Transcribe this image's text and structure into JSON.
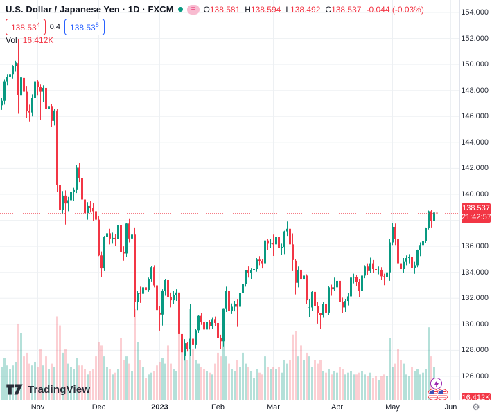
{
  "header": {
    "symbol": "U.S. Dollar / Japanese Yen · 1D · FXCM",
    "market_status_dot": "green",
    "eq_badge": "=",
    "ohlc": {
      "o_label": "O",
      "o": "138.581",
      "h_label": "H",
      "h": "138.594",
      "l_label": "L",
      "l": "138.492",
      "c_label": "C",
      "c": "138.537",
      "change": "-0.044 (-0.03%)"
    }
  },
  "quote": {
    "bid": "138.53",
    "bid_sup": "4",
    "spread": "0.4",
    "ask": "138.53",
    "ask_sup": "8"
  },
  "volume_row": {
    "label": "Vol",
    "value": "16.412K"
  },
  "price_axis": {
    "labels": [
      "154.000",
      "152.000",
      "150.000",
      "148.000",
      "146.000",
      "144.000",
      "142.000",
      "140.000",
      "138.000",
      "136.000",
      "134.000",
      "132.000",
      "130.000",
      "128.000",
      "126.000"
    ],
    "price_badge": {
      "price": "138.537",
      "countdown": "21:42:57"
    },
    "volume_badge": "16.412K"
  },
  "time_axis": {
    "ticks": [
      {
        "label": "Nov",
        "i": 13,
        "year": false
      },
      {
        "label": "Dec",
        "i": 35,
        "year": false
      },
      {
        "label": "2023",
        "i": 57,
        "year": true
      },
      {
        "label": "Feb",
        "i": 78,
        "year": false
      },
      {
        "label": "Mar",
        "i": 98,
        "year": false
      },
      {
        "label": "Apr",
        "i": 121,
        "year": false
      },
      {
        "label": "May",
        "i": 141,
        "year": false
      },
      {
        "label": "Jun",
        "i": 162,
        "year": false
      }
    ],
    "gear_icon": "⚙"
  },
  "logo": {
    "text": "TradingView"
  },
  "colors": {
    "up": "#089981",
    "down": "#F23645",
    "accent_blue": "#2962FF",
    "grid": "#EDF0F3",
    "badge_red": "#F23645",
    "text_dark": "#131722"
  },
  "chart_data": {
    "type": "candlestick-with-volume",
    "title": "USD/JPY 1D FXCM",
    "y_axis": {
      "min": 126.0,
      "max": 154.0,
      "tick_step": 2.0,
      "side": "right"
    },
    "x_axis": {
      "range": "Oct 2022 – Jun 2023",
      "interval": "1 day"
    },
    "last_price": 138.537,
    "current_volume_k": 16.412,
    "grid": true,
    "columns": [
      "open",
      "high",
      "low",
      "close",
      "volume_k"
    ],
    "candles": [
      [
        146.85,
        147.45,
        146.5,
        147.2,
        90
      ],
      [
        147.2,
        148.86,
        146.9,
        148.7,
        115
      ],
      [
        148.7,
        149.25,
        148.4,
        149.05,
        95
      ],
      [
        149.05,
        149.38,
        148.6,
        149.25,
        85
      ],
      [
        149.25,
        149.95,
        148.9,
        149.9,
        95
      ],
      [
        149.9,
        150.29,
        149.45,
        150.15,
        105
      ],
      [
        150.1,
        151.94,
        146.2,
        147.65,
        210
      ],
      [
        147.6,
        149.7,
        145.56,
        148.99,
        185
      ],
      [
        148.95,
        149.5,
        147.5,
        147.9,
        120
      ],
      [
        147.9,
        148.3,
        145.9,
        146.4,
        130
      ],
      [
        146.4,
        146.9,
        145.6,
        146.3,
        100
      ],
      [
        146.3,
        147.7,
        146.0,
        147.45,
        95
      ],
      [
        147.45,
        148.85,
        146.9,
        148.7,
        105
      ],
      [
        148.7,
        148.8,
        147.6,
        148.25,
        90
      ],
      [
        148.25,
        148.45,
        145.7,
        147.9,
        140
      ],
      [
        147.9,
        148.4,
        147.1,
        148.2,
        95
      ],
      [
        148.2,
        148.35,
        146.2,
        146.6,
        120
      ],
      [
        146.6,
        147.1,
        146.1,
        146.8,
        85
      ],
      [
        146.8,
        146.95,
        145.2,
        145.65,
        100
      ],
      [
        145.65,
        146.55,
        145.3,
        146.45,
        90
      ],
      [
        146.45,
        146.6,
        140.2,
        140.7,
        230
      ],
      [
        140.7,
        142.48,
        138.46,
        138.8,
        205
      ],
      [
        138.8,
        140.25,
        138.5,
        139.9,
        130
      ],
      [
        139.9,
        140.3,
        137.67,
        139.3,
        140
      ],
      [
        139.3,
        139.8,
        138.7,
        139.55,
        100
      ],
      [
        139.55,
        140.4,
        139.1,
        140.2,
        90
      ],
      [
        140.2,
        140.5,
        139.5,
        140.38,
        85
      ],
      [
        140.38,
        142.25,
        140.1,
        142.05,
        115
      ],
      [
        142.05,
        142.4,
        140.95,
        141.25,
        95
      ],
      [
        141.25,
        141.6,
        139.45,
        139.6,
        95
      ],
      [
        139.6,
        139.9,
        138.25,
        138.55,
        85
      ],
      [
        138.55,
        139.4,
        138.05,
        139.1,
        70
      ],
      [
        139.1,
        139.5,
        138.6,
        138.95,
        80
      ],
      [
        138.95,
        139.35,
        137.95,
        138.7,
        85
      ],
      [
        138.7,
        139.2,
        137.65,
        138.05,
        120
      ],
      [
        138.05,
        138.3,
        135.25,
        135.3,
        160
      ],
      [
        135.3,
        135.6,
        133.62,
        134.3,
        150
      ],
      [
        134.3,
        136.8,
        134.1,
        136.75,
        120
      ],
      [
        136.75,
        137.25,
        136.3,
        137.0,
        90
      ],
      [
        137.0,
        137.35,
        136.15,
        136.6,
        85
      ],
      [
        136.6,
        137.05,
        136.2,
        136.65,
        70
      ],
      [
        136.65,
        136.95,
        136.05,
        136.55,
        75
      ],
      [
        136.55,
        137.85,
        136.35,
        137.65,
        85
      ],
      [
        137.65,
        137.95,
        134.65,
        135.55,
        170
      ],
      [
        135.55,
        136.0,
        134.9,
        135.45,
        110
      ],
      [
        135.45,
        137.8,
        135.2,
        137.75,
        120
      ],
      [
        137.75,
        138.15,
        136.3,
        136.6,
        100
      ],
      [
        136.6,
        137.4,
        136.25,
        136.9,
        80
      ],
      [
        136.9,
        137.45,
        130.55,
        131.7,
        250
      ],
      [
        131.7,
        132.55,
        131.1,
        132.4,
        160
      ],
      [
        132.4,
        132.9,
        131.65,
        132.35,
        110
      ],
      [
        132.35,
        133.05,
        132.0,
        132.85,
        90
      ],
      [
        132.85,
        133.2,
        132.4,
        132.65,
        60
      ],
      [
        132.65,
        133.6,
        132.5,
        133.5,
        70
      ],
      [
        133.5,
        134.5,
        133.3,
        134.4,
        75
      ],
      [
        134.4,
        134.55,
        132.85,
        133.0,
        80
      ],
      [
        133.0,
        133.1,
        130.95,
        131.1,
        95
      ],
      [
        130.9,
        131.4,
        129.52,
        130.75,
        105
      ],
      [
        130.75,
        132.7,
        129.9,
        132.6,
        115
      ],
      [
        132.6,
        133.5,
        132.2,
        133.4,
        100
      ],
      [
        133.4,
        134.77,
        131.98,
        132.1,
        150
      ],
      [
        132.1,
        132.45,
        131.3,
        131.85,
        100
      ],
      [
        131.85,
        132.55,
        131.55,
        132.25,
        85
      ],
      [
        132.25,
        132.7,
        131.8,
        132.45,
        80
      ],
      [
        132.45,
        132.9,
        128.9,
        129.25,
        190
      ],
      [
        129.25,
        129.45,
        127.46,
        127.85,
        155
      ],
      [
        127.6,
        128.87,
        127.21,
        128.55,
        130
      ],
      [
        128.55,
        128.65,
        127.9,
        128.1,
        110
      ],
      [
        128.1,
        131.58,
        127.57,
        128.9,
        250
      ],
      [
        128.9,
        129.1,
        127.98,
        128.4,
        140
      ],
      [
        128.4,
        129.65,
        128.15,
        129.55,
        110
      ],
      [
        129.55,
        130.7,
        129.3,
        130.65,
        100
      ],
      [
        130.65,
        130.9,
        129.95,
        130.15,
        90
      ],
      [
        130.15,
        130.45,
        129.35,
        129.6,
        85
      ],
      [
        129.6,
        130.3,
        129.4,
        130.2,
        80
      ],
      [
        130.2,
        130.35,
        129.6,
        129.85,
        75
      ],
      [
        129.85,
        130.5,
        129.65,
        130.4,
        70
      ],
      [
        130.4,
        130.6,
        129.85,
        130.1,
        100
      ],
      [
        130.1,
        130.25,
        128.55,
        128.95,
        130
      ],
      [
        128.95,
        129.2,
        128.08,
        128.7,
        120
      ],
      [
        128.7,
        131.2,
        128.3,
        131.18,
        180
      ],
      [
        131.18,
        132.9,
        130.95,
        132.6,
        120
      ],
      [
        132.6,
        132.75,
        130.95,
        131.05,
        100
      ],
      [
        131.05,
        131.6,
        130.8,
        131.35,
        85
      ],
      [
        131.35,
        131.8,
        131.0,
        131.55,
        80
      ],
      [
        131.55,
        131.9,
        129.8,
        131.35,
        110
      ],
      [
        131.35,
        132.5,
        131.1,
        132.4,
        90
      ],
      [
        132.4,
        133.3,
        131.5,
        133.1,
        130
      ],
      [
        133.1,
        134.2,
        132.9,
        134.15,
        100
      ],
      [
        134.15,
        134.46,
        133.6,
        133.95,
        90
      ],
      [
        133.95,
        134.3,
        133.5,
        134.15,
        80
      ],
      [
        134.15,
        134.4,
        133.9,
        134.25,
        60
      ],
      [
        134.25,
        135.1,
        134.05,
        134.98,
        85
      ],
      [
        134.98,
        135.25,
        134.55,
        134.85,
        75
      ],
      [
        134.85,
        135.05,
        134.3,
        134.7,
        70
      ],
      [
        134.7,
        136.5,
        134.45,
        136.45,
        120
      ],
      [
        136.45,
        136.55,
        135.7,
        136.2,
        90
      ],
      [
        136.2,
        136.55,
        135.85,
        136.25,
        85
      ],
      [
        136.25,
        136.9,
        135.26,
        136.15,
        90
      ],
      [
        136.15,
        137.1,
        136.0,
        136.75,
        85
      ],
      [
        136.75,
        137.0,
        135.75,
        135.85,
        90
      ],
      [
        135.85,
        136.2,
        135.35,
        135.95,
        75
      ],
      [
        135.95,
        137.2,
        135.4,
        137.15,
        110
      ],
      [
        137.15,
        137.91,
        136.8,
        137.35,
        100
      ],
      [
        137.35,
        137.7,
        136.05,
        136.15,
        110
      ],
      [
        136.15,
        136.99,
        134.1,
        134.95,
        180
      ],
      [
        134.9,
        135.0,
        132.3,
        133.2,
        190
      ],
      [
        133.2,
        134.45,
        132.85,
        134.2,
        120
      ],
      [
        134.2,
        135.1,
        132.2,
        133.45,
        150
      ],
      [
        133.45,
        133.95,
        132.6,
        133.75,
        110
      ],
      [
        133.75,
        133.85,
        131.55,
        131.85,
        130
      ],
      [
        131.3,
        131.95,
        130.55,
        131.3,
        120
      ],
      [
        131.3,
        132.6,
        131.05,
        132.5,
        90
      ],
      [
        132.5,
        133.0,
        131.0,
        131.4,
        110
      ],
      [
        131.4,
        131.75,
        130.05,
        130.85,
        100
      ],
      [
        130.85,
        130.9,
        129.64,
        130.7,
        110
      ],
      [
        130.7,
        131.75,
        130.5,
        131.55,
        80
      ],
      [
        131.55,
        131.8,
        130.6,
        130.9,
        75
      ],
      [
        130.9,
        132.95,
        130.7,
        132.85,
        85
      ],
      [
        132.85,
        133.05,
        132.2,
        132.7,
        70
      ],
      [
        132.7,
        133.6,
        132.55,
        132.85,
        80
      ],
      [
        132.85,
        133.45,
        132.3,
        133.35,
        75
      ],
      [
        133.35,
        133.6,
        131.55,
        131.7,
        90
      ],
      [
        131.7,
        132.05,
        130.85,
        131.3,
        85
      ],
      [
        131.3,
        131.95,
        130.95,
        131.8,
        70
      ],
      [
        131.8,
        132.4,
        131.45,
        132.15,
        75
      ],
      [
        132.15,
        133.85,
        132.0,
        133.6,
        80
      ],
      [
        133.6,
        133.9,
        133.15,
        133.65,
        70
      ],
      [
        133.65,
        133.8,
        132.95,
        133.25,
        70
      ],
      [
        133.25,
        133.45,
        132.1,
        132.55,
        75
      ],
      [
        132.55,
        133.85,
        132.35,
        133.75,
        80
      ],
      [
        133.75,
        134.55,
        133.55,
        134.45,
        70
      ],
      [
        134.45,
        134.7,
        133.8,
        134.1,
        65
      ],
      [
        134.1,
        135.13,
        133.95,
        134.7,
        75
      ],
      [
        134.7,
        134.95,
        133.95,
        134.25,
        60
      ],
      [
        134.25,
        134.5,
        133.55,
        134.15,
        65
      ],
      [
        134.15,
        134.45,
        133.85,
        134.2,
        55
      ],
      [
        134.2,
        134.4,
        133.4,
        133.7,
        65
      ],
      [
        133.7,
        133.9,
        133.01,
        133.65,
        70
      ],
      [
        133.65,
        134.15,
        133.3,
        134.0,
        65
      ],
      [
        134.0,
        136.55,
        133.35,
        136.3,
        170
      ],
      [
        136.3,
        137.77,
        136.1,
        137.5,
        90
      ],
      [
        137.5,
        137.75,
        136.1,
        136.55,
        100
      ],
      [
        136.55,
        137.0,
        134.65,
        134.7,
        140
      ],
      [
        134.7,
        134.9,
        133.5,
        134.25,
        110
      ],
      [
        134.25,
        135.1,
        133.95,
        134.8,
        100
      ],
      [
        134.8,
        135.3,
        134.55,
        135.1,
        70
      ],
      [
        135.1,
        135.4,
        134.7,
        135.2,
        65
      ],
      [
        135.2,
        135.45,
        133.75,
        134.35,
        90
      ],
      [
        134.35,
        134.8,
        133.89,
        134.55,
        80
      ],
      [
        134.55,
        135.75,
        134.4,
        135.7,
        85
      ],
      [
        135.7,
        136.3,
        135.25,
        136.1,
        70
      ],
      [
        136.1,
        136.7,
        135.85,
        136.4,
        75
      ],
      [
        136.4,
        137.45,
        136.25,
        137.4,
        85
      ],
      [
        137.4,
        138.75,
        137.3,
        138.7,
        200
      ],
      [
        138.7,
        138.8,
        137.45,
        137.95,
        120
      ],
      [
        137.95,
        138.65,
        137.5,
        138.6,
        90
      ],
      [
        138.581,
        138.594,
        138.492,
        138.537,
        16.412
      ]
    ]
  }
}
